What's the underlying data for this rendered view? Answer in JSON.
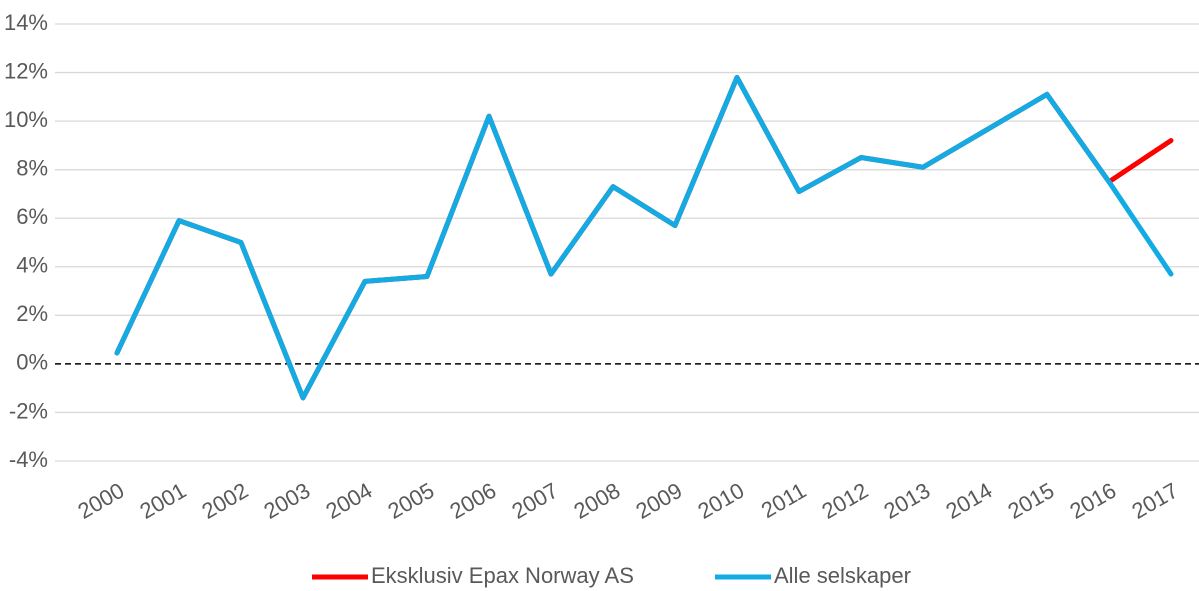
{
  "chart_data": {
    "type": "line",
    "categories": [
      "2000",
      "2001",
      "2002",
      "2003",
      "2004",
      "2005",
      "2006",
      "2007",
      "2008",
      "2009",
      "2010",
      "2011",
      "2012",
      "2013",
      "2014",
      "2015",
      "2016",
      "2017"
    ],
    "series": [
      {
        "name": "Eksklusiv Epax Norway AS",
        "color": "#ff0000",
        "values": [
          0.45,
          5.9,
          5.0,
          -1.4,
          3.4,
          3.6,
          10.2,
          3.7,
          7.3,
          5.7,
          11.8,
          7.1,
          8.5,
          8.1,
          9.6,
          11.1,
          7.5,
          9.2
        ]
      },
      {
        "name": "Alle selskaper",
        "color": "#12abe3",
        "values": [
          0.45,
          5.9,
          5.0,
          -1.4,
          3.4,
          3.6,
          10.2,
          3.7,
          7.3,
          5.7,
          11.8,
          7.1,
          8.5,
          8.1,
          9.6,
          11.1,
          7.5,
          3.7
        ]
      }
    ],
    "ylim": [
      -4,
      14
    ],
    "yticks": [
      {
        "value": -4,
        "label": "-4%"
      },
      {
        "value": -2,
        "label": "-2%"
      },
      {
        "value": 0,
        "label": "0%"
      },
      {
        "value": 2,
        "label": "2%"
      },
      {
        "value": 4,
        "label": "4%"
      },
      {
        "value": 6,
        "label": "6%"
      },
      {
        "value": 8,
        "label": "8%"
      },
      {
        "value": 10,
        "label": "10%"
      },
      {
        "value": 12,
        "label": "12%"
      },
      {
        "value": 14,
        "label": "14%"
      }
    ],
    "grid": true,
    "legend": "bottom"
  }
}
